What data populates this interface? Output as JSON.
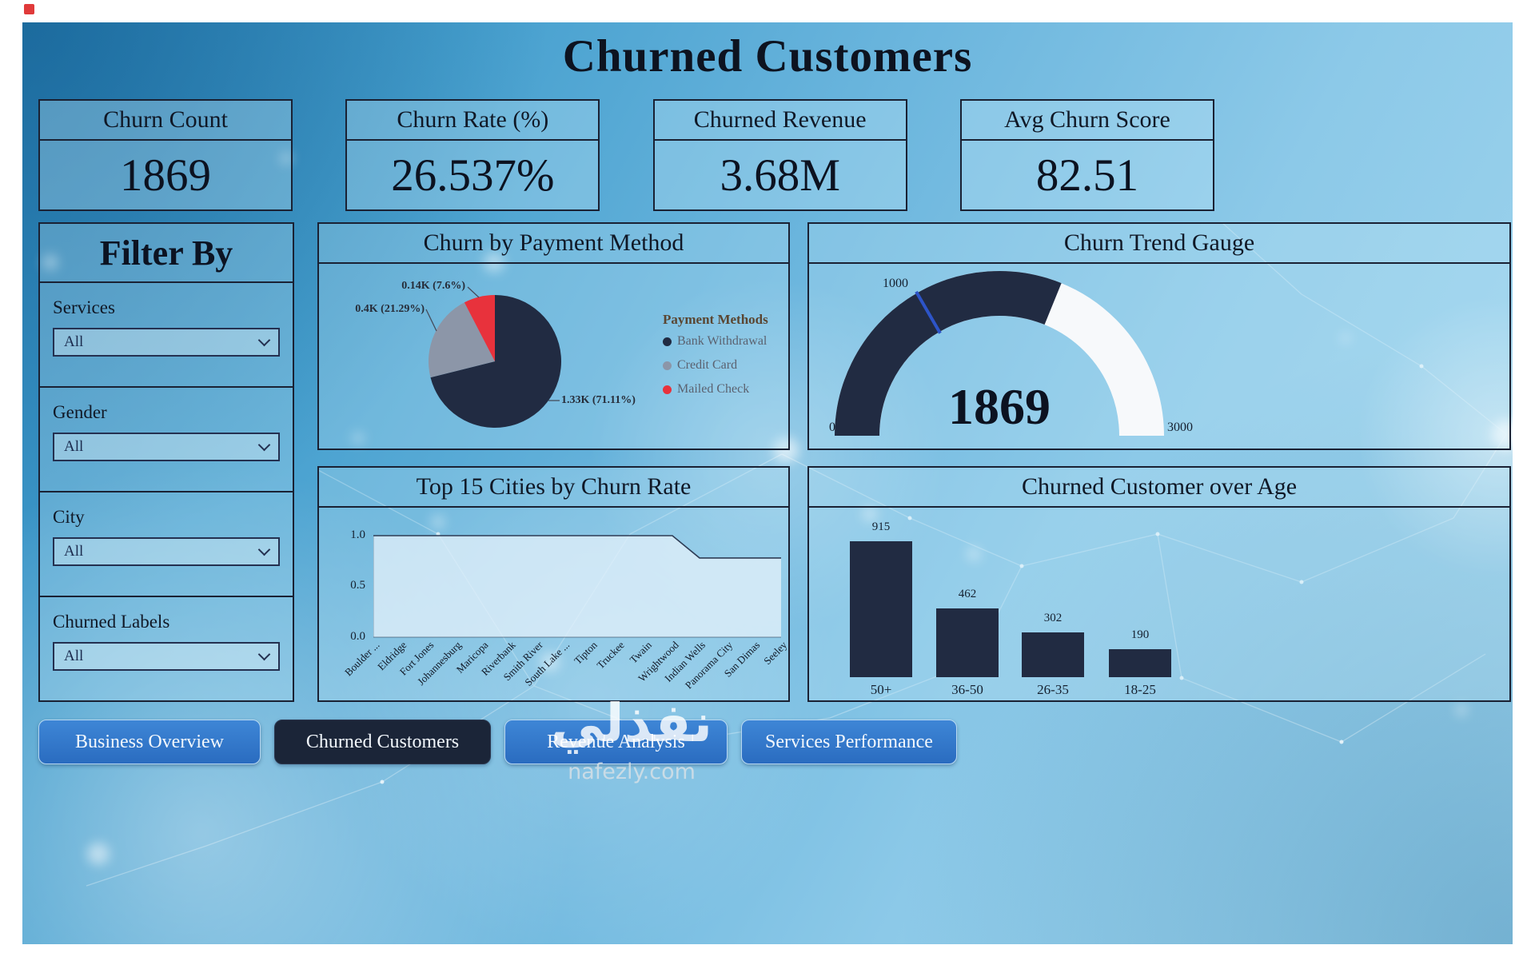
{
  "title": "Churned Customers",
  "kpis": [
    {
      "label": "Churn Count",
      "value": "1869"
    },
    {
      "label": "Churn Rate (%)",
      "value": "26.537%"
    },
    {
      "label": "Churned Revenue",
      "value": "3.68M"
    },
    {
      "label": "Avg Churn Score",
      "value": "82.51"
    }
  ],
  "filter_panel": {
    "title": "Filter By",
    "filters": [
      {
        "label": "Services",
        "value": "All"
      },
      {
        "label": "Gender",
        "value": "All"
      },
      {
        "label": "City",
        "value": "All"
      },
      {
        "label": "Churned Labels",
        "value": "All"
      }
    ]
  },
  "nav": [
    {
      "label": "Business Overview",
      "active": false
    },
    {
      "label": "Churned Customers",
      "active": true
    },
    {
      "label": "Revenue Analysis",
      "active": false
    },
    {
      "label": "Services Performance",
      "active": false
    }
  ],
  "watermark": {
    "arabic": "نفذلي",
    "site": "nafezly.com"
  },
  "colors": {
    "dark_navy": "#212b42",
    "slice_gray": "#8c96a8",
    "slice_red": "#e8323c",
    "gauge_rest": "#f7f9fb",
    "button_blue": "#2f74c8",
    "panel_border": "#1a2133"
  },
  "chart_data": [
    {
      "type": "pie",
      "title": "Churn by Payment Method",
      "legend_title": "Payment Methods",
      "legend_position": "right",
      "slices": [
        {
          "label": "Bank Withdrawal",
          "value": 1330,
          "percent": 71.11,
          "value_label": "1.33K (71.11%)",
          "color": "#212b42"
        },
        {
          "label": "Credit Card",
          "value": 400,
          "percent": 21.29,
          "value_label": "0.4K (21.29%)",
          "color": "#8c96a8"
        },
        {
          "label": "Mailed Check",
          "value": 140,
          "percent": 7.6,
          "value_label": "0.14K (7.6%)",
          "color": "#e8323c"
        }
      ]
    },
    {
      "type": "gauge",
      "title": "Churn Trend Gauge",
      "value": 1869,
      "min": 0,
      "max": 3000,
      "tick": 1000,
      "value_color": "#212b42",
      "rest_color": "#f7f9fb"
    },
    {
      "type": "area",
      "title": "Top 15 Cities by Churn Rate",
      "ylim": [
        0,
        1
      ],
      "yticks": [
        "1.0",
        "0.5",
        "0.0"
      ],
      "grid": false,
      "categories": [
        "Boulder ...",
        "Eldridge",
        "Fort Jones",
        "Johannesburg",
        "Maricopa",
        "Riverbank",
        "Smith River",
        "South Lake ...",
        "Tipton",
        "Truckee",
        "Twain",
        "Wrightwood",
        "Indian Wells",
        "Panorama City",
        "San Dimas",
        "Seeley"
      ],
      "values": [
        1.0,
        1.0,
        1.0,
        1.0,
        1.0,
        1.0,
        1.0,
        1.0,
        1.0,
        1.0,
        1.0,
        1.0,
        0.78,
        0.78,
        0.78,
        0.78
      ]
    },
    {
      "type": "bar",
      "title": "Churned Customer over Age",
      "categories": [
        "50+",
        "36-50",
        "26-35",
        "18-25"
      ],
      "values": [
        915,
        462,
        302,
        190
      ],
      "bar_color": "#212b42"
    }
  ]
}
